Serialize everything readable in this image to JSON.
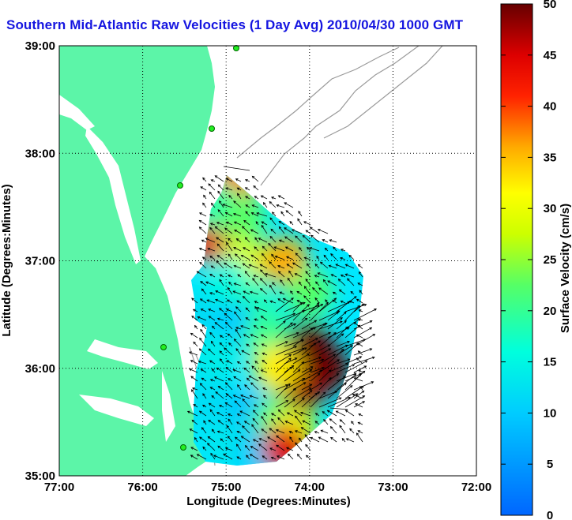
{
  "chart_data": {
    "type": "heatmap",
    "title": "Southern Mid-Atlantic Raw Velocities (1 Day Avg) 2010/04/30 1000 GMT",
    "xlabel": "Longitude (Degrees:Minutes)",
    "ylabel": "Latitude (Degrees:Minutes)",
    "x_ticks": [
      "77:00",
      "76:00",
      "75:00",
      "74:00",
      "73:00",
      "72:00"
    ],
    "y_ticks": [
      "39:00",
      "38:00",
      "37:00",
      "36:00",
      "35:00"
    ],
    "xlim": [
      -77,
      -72
    ],
    "ylim": [
      35,
      39
    ],
    "grid": true,
    "colorbar": {
      "label": "Surface Velocity (cm/s)",
      "ticks": [
        "0",
        "5",
        "10",
        "15",
        "20",
        "25",
        "30",
        "35",
        "40",
        "45",
        "50"
      ],
      "range": [
        0,
        50
      ]
    },
    "field_points": [
      {
        "lon": -74.9,
        "lat": 37.7,
        "v": 38
      },
      {
        "lon": -75.2,
        "lat": 37.2,
        "v": 45
      },
      {
        "lon": -75.1,
        "lat": 37.5,
        "v": 18
      },
      {
        "lon": -74.8,
        "lat": 37.4,
        "v": 22
      },
      {
        "lon": -74.8,
        "lat": 37.0,
        "v": 28
      },
      {
        "lon": -74.3,
        "lat": 37.0,
        "v": 36
      },
      {
        "lon": -74.0,
        "lat": 36.7,
        "v": 22
      },
      {
        "lon": -75.0,
        "lat": 36.8,
        "v": 15
      },
      {
        "lon": -75.4,
        "lat": 36.5,
        "v": 12
      },
      {
        "lon": -74.7,
        "lat": 36.6,
        "v": 18
      },
      {
        "lon": -74.9,
        "lat": 36.4,
        "v": 10
      },
      {
        "lon": -74.5,
        "lat": 36.3,
        "v": 20
      },
      {
        "lon": -74.0,
        "lat": 36.2,
        "v": 50
      },
      {
        "lon": -73.8,
        "lat": 36.0,
        "v": 50
      },
      {
        "lon": -74.1,
        "lat": 35.8,
        "v": 48
      },
      {
        "lon": -74.4,
        "lat": 36.0,
        "v": 32
      },
      {
        "lon": -75.1,
        "lat": 36.1,
        "v": 14
      },
      {
        "lon": -75.2,
        "lat": 35.7,
        "v": 12
      },
      {
        "lon": -74.7,
        "lat": 35.6,
        "v": 9
      },
      {
        "lon": -74.4,
        "lat": 35.5,
        "v": 22
      },
      {
        "lon": -75.0,
        "lat": 35.3,
        "v": 13
      },
      {
        "lon": -74.6,
        "lat": 35.2,
        "v": 10
      },
      {
        "lon": -74.2,
        "lat": 35.4,
        "v": 30
      },
      {
        "lon": -74.3,
        "lat": 35.25,
        "v": 45
      }
    ]
  }
}
